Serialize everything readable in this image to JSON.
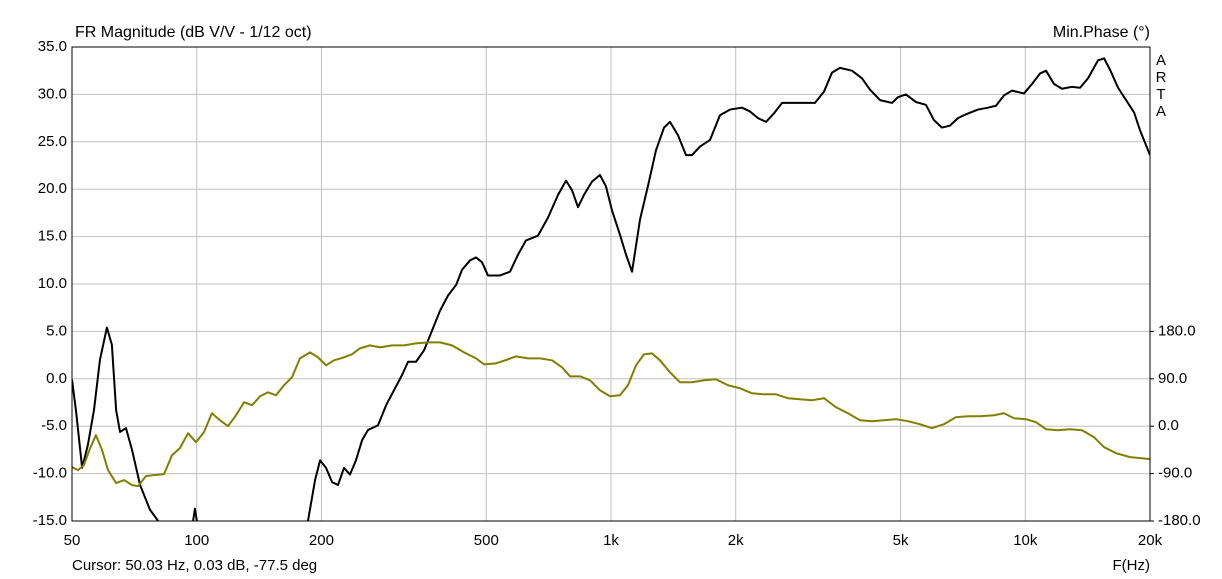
{
  "chart_data": {
    "type": "line",
    "title": "FR Magnitude (dB V/V - 1/12 oct)",
    "y2_label": "Min.Phase (°)",
    "watermark": "ARTA",
    "x_label": "F(Hz)",
    "cursor": "Cursor: 50.03 Hz, 0.03 dB, -77.5 deg",
    "xscale": "log",
    "grid": true,
    "xlim": [
      50,
      20000
    ],
    "xticks": [
      50,
      100,
      200,
      500,
      {
        "value": 1000,
        "label": "1k"
      },
      {
        "value": 2000,
        "label": "2k"
      },
      {
        "value": 5000,
        "label": "5k"
      },
      {
        "value": 10000,
        "label": "10k"
      },
      {
        "value": 20000,
        "label": "20k"
      }
    ],
    "ylim": [
      -15,
      35
    ],
    "yticks": [
      {
        "value": -15,
        "label": "-15.0"
      },
      {
        "value": -10,
        "label": "-10.0"
      },
      {
        "value": -5,
        "label": "-5.0"
      },
      {
        "value": 0,
        "label": "0.0"
      },
      {
        "value": 5,
        "label": "5.0"
      },
      {
        "value": 10,
        "label": "10.0"
      },
      {
        "value": 15,
        "label": "15.0"
      },
      {
        "value": 20,
        "label": "20.0"
      },
      {
        "value": 25,
        "label": "25.0"
      },
      {
        "value": 30,
        "label": "30.0"
      },
      {
        "value": 35,
        "label": "35.0"
      }
    ],
    "y2lim": [
      -180,
      720
    ],
    "y2ticks": [
      {
        "value": -180,
        "label": "-180.0"
      },
      {
        "value": -90,
        "label": "-90.0"
      },
      {
        "value": 0,
        "label": "0.0"
      },
      {
        "value": 90,
        "label": "90.0"
      },
      {
        "value": 180,
        "label": "180.0"
      }
    ],
    "series": [
      {
        "color": "#000000",
        "x": [
          50,
          51.1,
          52.9,
          54.6,
          56.5,
          58.4,
          60.7,
          62.4,
          63.9,
          65.3,
          67.5,
          69.8,
          73.0,
          77.1,
          80.7,
          null,
          98.0,
          99.0,
          100.1,
          null,
          185.6,
          193,
          198.5,
          205.2,
          212.2,
          219.3,
          226.7,
          234.4,
          242.3,
          250.6,
          259.1,
          274,
          286.4,
          299.4,
          313.1,
          323.7,
          338.4,
          353.8,
          369.9,
          386.8,
          404.4,
          422.8,
          437,
          456.9,
          472.3,
          488.2,
          504.7,
          539.7,
          570.5,
          596.5,
          623.6,
          666.5,
          704.6,
          745,
          778.8,
          805.2,
          832.4,
          860.6,
          899.7,
          940.5,
          972.4,
          1005,
          1051,
          1087,
          1124,
          1175,
          1229,
          1284,
          1343,
          1388,
          1451,
          1517,
          1569,
          1640,
          1734,
          1832,
          1937,
          2071,
          2165,
          2264,
          2367,
          2474,
          2587,
          2735,
          2923,
          3108,
          3267,
          3415,
          3570,
          3817,
          4035,
          4219,
          4460,
          4768,
          4926,
          5150,
          5444,
          5757,
          6017,
          6292,
          6578,
          6876,
          7192,
          7688,
          8127,
          8497,
          8883,
          9287,
          9929,
          10380,
          10853,
          11222,
          11734,
          12268,
          12967,
          13557,
          14174,
          14987,
          15495,
          16019,
          16749,
          17509,
          18305,
          18927,
          20000
        ],
        "values": [
          -0.1,
          -3.3,
          -9.4,
          -7.0,
          -3.3,
          2.0,
          5.4,
          3.6,
          -3.3,
          -5.6,
          -5.2,
          -7.5,
          -11.2,
          -13.8,
          -15.0,
          null,
          -15.0,
          -13.7,
          -15.0,
          null,
          -15.0,
          -10.7,
          -8.6,
          -9.4,
          -10.9,
          -11.2,
          -9.4,
          -10.1,
          -8.6,
          -6.5,
          -5.4,
          -4.9,
          -2.8,
          -1.2,
          0.4,
          1.8,
          1.8,
          3.0,
          5.1,
          7.2,
          8.8,
          9.9,
          11.5,
          12.5,
          12.8,
          12.3,
          10.9,
          10.9,
          11.3,
          13.1,
          14.6,
          15.1,
          17.0,
          19.4,
          20.9,
          19.9,
          18.1,
          19.4,
          20.8,
          21.5,
          20.3,
          17.8,
          15.2,
          13.1,
          11.3,
          16.8,
          20.4,
          24.1,
          26.5,
          27.1,
          25.7,
          23.6,
          23.6,
          24.5,
          25.2,
          27.8,
          28.4,
          28.6,
          28.2,
          27.5,
          27.1,
          28.0,
          29.1,
          29.1,
          29.1,
          29.1,
          30.3,
          32.3,
          32.8,
          32.5,
          31.7,
          30.5,
          29.4,
          29.1,
          29.7,
          30.0,
          29.2,
          28.9,
          27.3,
          26.5,
          26.7,
          27.5,
          27.9,
          28.4,
          28.6,
          28.8,
          29.9,
          30.4,
          30.1,
          31.1,
          32.2,
          32.5,
          31.1,
          30.6,
          30.8,
          30.7,
          31.7,
          33.6,
          33.8,
          32.6,
          30.7,
          29.4,
          28.1,
          26.2,
          23.6
        ]
      },
      {
        "color": "#808000",
        "axis": "y2",
        "x": [
          50,
          51.7,
          53.4,
          55.3,
          57.1,
          59.1,
          61.1,
          63.9,
          66.8,
          69.8,
          72.2,
          75.4,
          78.9,
          83.4,
          87.2,
          91.1,
          95.3,
          99.6,
          104.1,
          108.8,
          113.8,
          119,
          124.4,
          130.1,
          136,
          142.2,
          148.6,
          155.4,
          162.4,
          169.8,
          177.5,
          187.7,
          196.3,
          205.2,
          214.5,
          226.7,
          237,
          247.8,
          262,
          277,
          296.1,
          316.6,
          338.4,
          361.8,
          386.8,
          413.4,
          441.9,
          472.3,
          493.7,
          527.8,
          564.2,
          589.9,
          630.6,
          674.1,
          720.6,
          761.9,
          796.3,
          842,
          889.9,
          940.5,
          994.3,
          1051,
          1099,
          1149,
          1201,
          1256,
          1313,
          1388,
          1467,
          1569,
          1677,
          1792,
          1916,
          2048,
          2189,
          2340,
          2501,
          2674,
          2858,
          3055,
          3267,
          3492,
          3732,
          3990,
          4265,
          4558,
          4872,
          5208,
          5567,
          5951,
          6361,
          6800,
          7269,
          7769,
          8403,
          8883,
          9391,
          10039,
          10612,
          11222,
          11994,
          12822,
          13706,
          14651,
          15495,
          16563,
          17908,
          20000
        ],
        "values": [
          -77.5,
          -83.4,
          -73.9,
          -41.7,
          -17.1,
          -45.5,
          -83.4,
          -108,
          -102.3,
          -111.8,
          -113.7,
          -94.7,
          -92.8,
          -90.9,
          -54.9,
          -41.7,
          -13.3,
          -30.3,
          -11.4,
          24.6,
          11.4,
          0,
          20.8,
          45.5,
          39.8,
          56.8,
          64.4,
          58.7,
          77.7,
          92.8,
          128.8,
          140.2,
          130.7,
          115.6,
          125.1,
          130.7,
          136.4,
          147.8,
          153.5,
          149.7,
          153.5,
          153.5,
          157.3,
          159.2,
          159.2,
          153.5,
          140.2,
          128.8,
          117.5,
          119.4,
          126.9,
          132.6,
          128.8,
          128.8,
          125.1,
          111.8,
          94.7,
          94.7,
          87.2,
          68.2,
          56.8,
          58.7,
          77.7,
          115.6,
          136.4,
          138.3,
          125.1,
          102.3,
          83.4,
          83.4,
          87.2,
          89.1,
          77.7,
          72.0,
          62.5,
          60.6,
          60.6,
          53.1,
          51.2,
          49.3,
          53.1,
          36.0,
          24.6,
          11.4,
          9.5,
          11.4,
          13.3,
          9.5,
          3.8,
          -3.8,
          3.8,
          17.1,
          18.9,
          18.9,
          20.8,
          24.6,
          15.1,
          13.3,
          7.6,
          -5.7,
          -7.6,
          -5.7,
          -7.6,
          -20.8,
          -39.8,
          -51.2,
          -58.7,
          -62.5
        ]
      }
    ]
  }
}
